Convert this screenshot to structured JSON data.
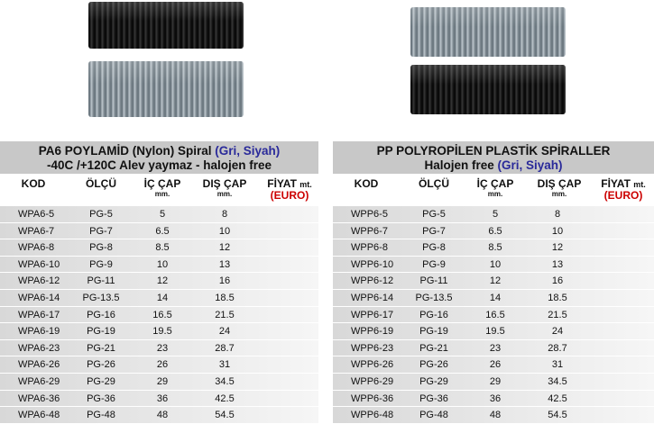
{
  "left_table": {
    "title_line1": "PA6 POYLAMİD (Nylon) Spiral",
    "title_line1_hl": "(Gri, Siyah)",
    "title_line2": "-40C /+120C Alev yaymaz - halojen free",
    "headers": {
      "kod": "KOD",
      "olcu": "ÖLÇÜ",
      "ic": "İÇ ÇAP",
      "ic_unit": "mm.",
      "dis": "DIŞ ÇAP",
      "dis_unit": "mm.",
      "fiyat": "FİYAT",
      "fiyat_unit": "mt.",
      "currency": "(EURO)"
    },
    "rows": [
      {
        "kod": "WPA6-5",
        "olcu": "PG-5",
        "ic": "5",
        "dis": "8"
      },
      {
        "kod": "WPA6-7",
        "olcu": "PG-7",
        "ic": "6.5",
        "dis": "10"
      },
      {
        "kod": "WPA6-8",
        "olcu": "PG-8",
        "ic": "8.5",
        "dis": "12"
      },
      {
        "kod": "WPA6-10",
        "olcu": "PG-9",
        "ic": "10",
        "dis": "13"
      },
      {
        "kod": "WPA6-12",
        "olcu": "PG-11",
        "ic": "12",
        "dis": "16"
      },
      {
        "kod": "WPA6-14",
        "olcu": "PG-13.5",
        "ic": "14",
        "dis": "18.5"
      },
      {
        "kod": "WPA6-17",
        "olcu": "PG-16",
        "ic": "16.5",
        "dis": "21.5"
      },
      {
        "kod": "WPA6-19",
        "olcu": "PG-19",
        "ic": "19.5",
        "dis": "24"
      },
      {
        "kod": "WPA6-23",
        "olcu": "PG-21",
        "ic": "23",
        "dis": "28.7"
      },
      {
        "kod": "WPA6-26",
        "olcu": "PG-26",
        "ic": "26",
        "dis": "31"
      },
      {
        "kod": "WPA6-29",
        "olcu": "PG-29",
        "ic": "29",
        "dis": "34.5"
      },
      {
        "kod": "WPA6-36",
        "olcu": "PG-36",
        "ic": "36",
        "dis": "42.5"
      },
      {
        "kod": "WPA6-48",
        "olcu": "PG-48",
        "ic": "48",
        "dis": "54.5"
      }
    ]
  },
  "right_table": {
    "title_line1": "PP POLYROPİLEN PLASTİK SPİRALLER",
    "title_line2": "Halojen free",
    "title_line2_hl": "(Gri, Siyah)",
    "headers": {
      "kod": "KOD",
      "olcu": "ÖLÇÜ",
      "ic": "İÇ ÇAP",
      "ic_unit": "mm.",
      "dis": "DIŞ ÇAP",
      "dis_unit": "mm.",
      "fiyat": "FİYAT",
      "fiyat_unit": "mt.",
      "currency": "(EURO)"
    },
    "rows": [
      {
        "kod": "WPP6-5",
        "olcu": "PG-5",
        "ic": "5",
        "dis": "8"
      },
      {
        "kod": "WPP6-7",
        "olcu": "PG-7",
        "ic": "6.5",
        "dis": "10"
      },
      {
        "kod": "WPP6-8",
        "olcu": "PG-8",
        "ic": "8.5",
        "dis": "12"
      },
      {
        "kod": "WPP6-10",
        "olcu": "PG-9",
        "ic": "10",
        "dis": "13"
      },
      {
        "kod": "WPP6-12",
        "olcu": "PG-11",
        "ic": "12",
        "dis": "16"
      },
      {
        "kod": "WPP6-14",
        "olcu": "PG-13.5",
        "ic": "14",
        "dis": "18.5"
      },
      {
        "kod": "WPP6-17",
        "olcu": "PG-16",
        "ic": "16.5",
        "dis": "21.5"
      },
      {
        "kod": "WPP6-19",
        "olcu": "PG-19",
        "ic": "19.5",
        "dis": "24"
      },
      {
        "kod": "WPP6-23",
        "olcu": "PG-21",
        "ic": "23",
        "dis": "28.7"
      },
      {
        "kod": "WPP6-26",
        "olcu": "PG-26",
        "ic": "26",
        "dis": "31"
      },
      {
        "kod": "WPP6-29",
        "olcu": "PG-29",
        "ic": "29",
        "dis": "34.5"
      },
      {
        "kod": "WPP6-36",
        "olcu": "PG-36",
        "ic": "36",
        "dis": "42.5"
      },
      {
        "kod": "WPP6-48",
        "olcu": "PG-48",
        "ic": "48",
        "dis": "54.5"
      }
    ]
  },
  "colors": {
    "header_bg": "#c8c8c8",
    "highlight": "#2a2a9a",
    "currency": "#cc0000"
  }
}
